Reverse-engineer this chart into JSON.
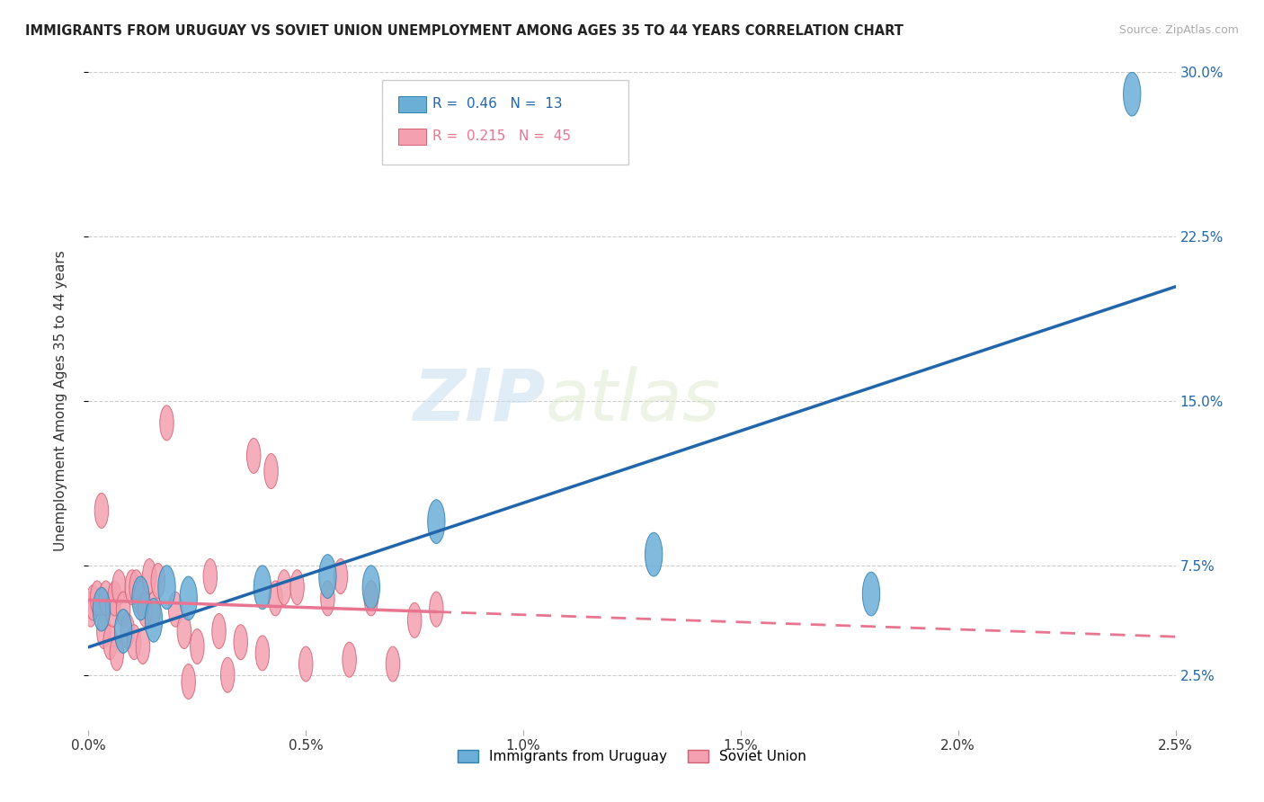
{
  "title": "IMMIGRANTS FROM URUGUAY VS SOVIET UNION UNEMPLOYMENT AMONG AGES 35 TO 44 YEARS CORRELATION CHART",
  "source": "Source: ZipAtlas.com",
  "ylabel": "Unemployment Among Ages 35 to 44 years",
  "watermark_zip": "ZIP",
  "watermark_atlas": "atlas",
  "legend_labels": [
    "Immigrants from Uruguay",
    "Soviet Union"
  ],
  "uruguay_R": 0.46,
  "uruguay_N": 13,
  "soviet_R": 0.215,
  "soviet_N": 45,
  "xlim": [
    0.0,
    0.025
  ],
  "ylim": [
    0.0,
    0.3
  ],
  "xticks": [
    0.0,
    0.005,
    0.01,
    0.015,
    0.02,
    0.025
  ],
  "yticks": [
    0.025,
    0.075,
    0.15,
    0.225,
    0.3
  ],
  "ytick_labels_right": [
    "2.5%",
    "7.5%",
    "15.0%",
    "22.5%",
    "30.0%"
  ],
  "xtick_labels": [
    "0.0%",
    "0.5%",
    "1.0%",
    "1.5%",
    "2.0%",
    "2.5%"
  ],
  "color_uruguay": "#6baed6",
  "color_soviet": "#f4a0b0",
  "color_trendline_uruguay": "#2166ac",
  "color_trendline_soviet": "#e87590",
  "background": "#ffffff",
  "uruguay_x": [
    0.0003,
    0.0008,
    0.0012,
    0.0015,
    0.0018,
    0.0023,
    0.004,
    0.0055,
    0.0065,
    0.008,
    0.013,
    0.018,
    0.024
  ],
  "uruguay_y": [
    0.055,
    0.045,
    0.06,
    0.05,
    0.065,
    0.06,
    0.065,
    0.07,
    0.065,
    0.095,
    0.08,
    0.062,
    0.29
  ],
  "soviet_x": [
    5e-05,
    0.0001,
    0.0002,
    0.0003,
    0.00035,
    0.0004,
    0.0005,
    0.00055,
    0.0006,
    0.00065,
    0.0007,
    0.0008,
    0.0009,
    0.001,
    0.00105,
    0.0011,
    0.0012,
    0.00125,
    0.0013,
    0.0014,
    0.0015,
    0.0016,
    0.0018,
    0.002,
    0.0022,
    0.0023,
    0.0025,
    0.0028,
    0.003,
    0.0032,
    0.0035,
    0.0038,
    0.004,
    0.0042,
    0.0043,
    0.0045,
    0.0048,
    0.005,
    0.0055,
    0.0058,
    0.006,
    0.0065,
    0.007,
    0.0075,
    0.008
  ],
  "soviet_y": [
    0.055,
    0.058,
    0.06,
    0.1,
    0.045,
    0.06,
    0.04,
    0.055,
    0.06,
    0.035,
    0.065,
    0.055,
    0.045,
    0.065,
    0.04,
    0.065,
    0.06,
    0.038,
    0.055,
    0.07,
    0.055,
    0.068,
    0.14,
    0.055,
    0.045,
    0.022,
    0.038,
    0.07,
    0.045,
    0.025,
    0.04,
    0.125,
    0.035,
    0.118,
    0.06,
    0.065,
    0.065,
    0.03,
    0.06,
    0.07,
    0.032,
    0.06,
    0.03,
    0.05,
    0.055
  ]
}
